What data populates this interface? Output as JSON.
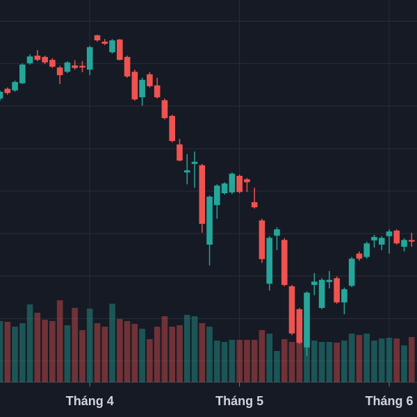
{
  "chart_data": {
    "type": "candlestick",
    "categories": [
      null,
      null,
      null,
      null,
      null,
      null,
      null,
      null,
      null,
      null,
      null,
      null,
      "Tháng 4",
      null,
      null,
      null,
      null,
      null,
      null,
      null,
      null,
      null,
      null,
      null,
      null,
      null,
      null,
      null,
      null,
      null,
      null,
      null,
      "Tháng 5",
      null,
      null,
      null,
      null,
      null,
      null,
      null,
      null,
      null,
      null,
      null,
      null,
      null,
      null,
      null,
      null,
      null,
      null,
      null,
      "Tháng 6",
      null,
      null,
      null
    ],
    "open": [
      71.8,
      74.1,
      73.7,
      75.4,
      80.1,
      81.9,
      81.6,
      80.9,
      79.1,
      78.1,
      79.6,
      79.5,
      78.6,
      86.7,
      85.2,
      82.7,
      85.7,
      81.6,
      78.1,
      72.1,
      77.5,
      74.9,
      71.4,
      67.7,
      61.0,
      54.4,
      56.4,
      56.1,
      37.4,
      46.7,
      49.5,
      49.7,
      53.6,
      52.8,
      47.4,
      43.1,
      28.2,
      39.5,
      38.5,
      27.6,
      22.2,
      13.2,
      27.9,
      22.5,
      28.6,
      29.5,
      23.8,
      27.7,
      35.3,
      34.5,
      38.4,
      37.4,
      39.4,
      40.7,
      36.9,
      38.5
    ],
    "high": [
      73.7,
      74.4,
      76.0,
      80.1,
      82.2,
      83.2,
      81.9,
      81.3,
      79.5,
      80.6,
      80.8,
      80.6,
      84.2,
      86.8,
      85.8,
      85.8,
      85.8,
      81.9,
      78.6,
      76.7,
      78.0,
      76.7,
      71.8,
      68.0,
      62.3,
      58.7,
      59.3,
      56.4,
      49.0,
      51.6,
      52.1,
      54.4,
      53.9,
      53.1,
      50.8,
      43.5,
      39.4,
      41.5,
      38.9,
      27.9,
      22.5,
      26.4,
      30.7,
      29.5,
      31.2,
      29.9,
      27.3,
      34.5,
      35.8,
      38.1,
      39.7,
      39.4,
      41.0,
      41.0,
      38.9,
      40.2
    ],
    "low": [
      71.3,
      72.7,
      73.4,
      75.2,
      79.8,
      80.6,
      79.9,
      79.0,
      75.2,
      77.8,
      78.6,
      78.0,
      77.3,
      85.2,
      84.4,
      82.4,
      80.8,
      76.7,
      71.3,
      70.1,
      74.4,
      71.8,
      66.9,
      61.5,
      57.0,
      51.6,
      50.8,
      40.2,
      32.5,
      43.5,
      49.2,
      49.3,
      49.5,
      49.8,
      45.9,
      33.1,
      26.6,
      36.1,
      27.6,
      16.1,
      14.0,
      11.2,
      25.5,
      22.2,
      27.1,
      23.5,
      21.0,
      27.4,
      33.6,
      34.1,
      36.7,
      36.1,
      35.3,
      37.4,
      35.8,
      36.9
    ],
    "close": [
      73.4,
      73.1,
      75.7,
      79.8,
      81.7,
      80.9,
      80.3,
      79.3,
      77.3,
      80.3,
      79.0,
      79.1,
      83.9,
      85.5,
      84.7,
      85.5,
      80.9,
      77.0,
      71.6,
      76.2,
      74.7,
      72.1,
      67.2,
      61.8,
      57.2,
      54.9,
      56.9,
      42.3,
      48.7,
      51.3,
      51.8,
      54.1,
      49.8,
      52.1,
      46.2,
      34.0,
      39.0,
      41.0,
      27.9,
      16.5,
      14.3,
      26.1,
      28.7,
      29.1,
      29.1,
      23.8,
      26.9,
      34.1,
      34.1,
      37.7,
      39.2,
      39.0,
      40.5,
      37.7,
      38.5,
      38.1
    ],
    "volume": [
      88,
      87,
      80,
      85,
      112,
      100,
      90,
      88,
      118,
      82,
      107,
      75,
      106,
      85,
      80,
      113,
      91,
      88,
      84,
      77,
      62,
      80,
      95,
      80,
      82,
      97,
      95,
      85,
      80,
      60,
      58,
      61,
      61,
      61,
      61,
      75,
      70,
      45,
      62,
      58,
      63,
      70,
      60,
      58,
      58,
      57,
      60,
      70,
      68,
      70,
      60,
      63,
      64,
      63,
      53,
      65
    ],
    "up_color": "#26a69a",
    "down_color": "#ef5350",
    "ylim": [
      5,
      95
    ],
    "yticks": [
      10,
      20,
      30,
      40,
      50,
      60,
      70,
      80,
      90
    ],
    "volume_ylim": [
      0,
      550
    ],
    "grid": true
  }
}
